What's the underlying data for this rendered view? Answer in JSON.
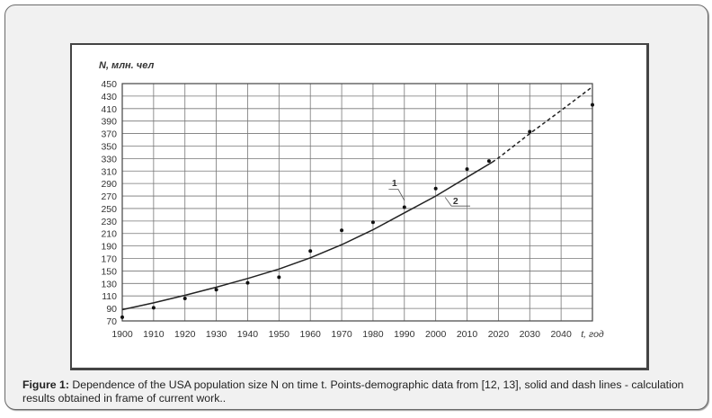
{
  "figure": {
    "caption_label": "Figure 1:",
    "caption_text": " Dependence of the USA population size N on time t. Points-demographic data from [12, 13], solid and dash lines - calculation results obtained in frame of current work.."
  },
  "chart_data": {
    "type": "line",
    "ylabel": "N, млн. чел",
    "xlabel": "t, год",
    "xlim": [
      1900,
      2050
    ],
    "ylim": [
      70,
      450
    ],
    "grid": true,
    "x_ticks": [
      "1900",
      "1910",
      "1920",
      "1930",
      "1940",
      "1950",
      "1960",
      "1970",
      "1980",
      "1990",
      "2000",
      "2010",
      "2020",
      "2030",
      "2040"
    ],
    "y_ticks": [
      "70",
      "90",
      "110",
      "130",
      "150",
      "170",
      "190",
      "210",
      "230",
      "250",
      "270",
      "290",
      "310",
      "330",
      "350",
      "370",
      "390",
      "410",
      "430",
      "450"
    ],
    "curve_labels": [
      "1",
      "2"
    ],
    "series": [
      {
        "style": "points",
        "x": [
          1900,
          1910,
          1920,
          1930,
          1940,
          1950,
          1960,
          1970,
          1980,
          1990,
          2000,
          2010,
          2017,
          2030,
          2050
        ],
        "y": [
          76,
          91,
          106,
          120,
          131,
          140,
          182,
          215,
          228,
          252,
          282,
          313,
          326,
          373,
          416
        ]
      },
      {
        "style": "solid",
        "x": [
          1900,
          1910,
          1920,
          1930,
          1940,
          1950,
          1960,
          1970,
          1980,
          1990,
          2000,
          2010,
          2018
        ],
        "y": [
          88,
          99,
          111,
          124,
          138,
          153,
          171,
          192,
          216,
          243,
          270,
          300,
          324
        ]
      },
      {
        "style": "dashed",
        "x": [
          2018,
          2020,
          2030,
          2040,
          2050
        ],
        "y": [
          324,
          331,
          370,
          407,
          445
        ]
      }
    ]
  }
}
